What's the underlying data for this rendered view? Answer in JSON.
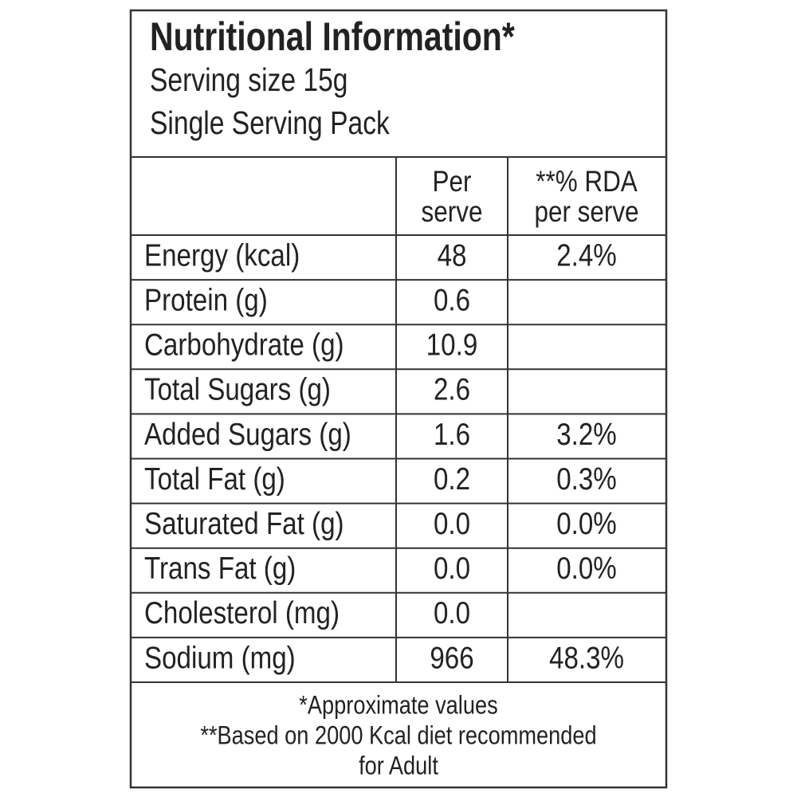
{
  "header": {
    "title": "Nutritional Information*",
    "lines": [
      "Serving size 15g",
      "Single Serving Pack"
    ]
  },
  "table": {
    "columns": [
      [
        "Per",
        "serve"
      ],
      [
        "**% RDA",
        "per serve"
      ]
    ],
    "rows": [
      [
        "Energy (kcal)",
        "48",
        "2.4%"
      ],
      [
        "Protein (g)",
        "0.6",
        null
      ],
      [
        "Carbohydrate (g)",
        "10.9",
        null
      ],
      [
        "Total Sugars (g)",
        "2.6",
        null
      ],
      [
        "Added Sugars (g)",
        "1.6",
        "3.2%"
      ],
      [
        "Total Fat (g)",
        "0.2",
        "0.3%"
      ],
      [
        "Saturated Fat (g)",
        "0.0",
        "0.0%"
      ],
      [
        "Trans Fat (g)",
        "0.0",
        "0.0%"
      ],
      [
        "Cholesterol (mg)",
        "0.0",
        null
      ],
      [
        "Sodium (mg)",
        "966",
        "48.3%"
      ]
    ]
  },
  "footer": [
    "*Approximate values",
    "**Based on 2000 Kcal diet recommended",
    "for Adult"
  ]
}
